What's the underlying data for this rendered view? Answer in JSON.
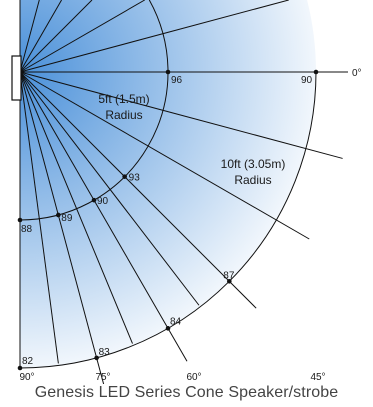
{
  "caption": "Genesis LED Series Cone Speaker/strobe",
  "colors": {
    "gradient_near": "#4a90d9",
    "gradient_far": "#ffffff",
    "lines": "#111111",
    "caption_text": "#444444"
  },
  "radius_labels": {
    "inner": [
      "5ft (1.5m)",
      "Radius"
    ],
    "outer": [
      "10ft (3.05m)",
      "Radius"
    ]
  },
  "angle_labels": [
    {
      "angle": 0,
      "label": "0°"
    },
    {
      "angle": 45,
      "label": "45°"
    },
    {
      "angle": 60,
      "label": "60°"
    },
    {
      "angle": 75,
      "label": "75°"
    },
    {
      "angle": 90,
      "label": "90°"
    }
  ],
  "sound_levels": [
    {
      "arc": "inner",
      "angle": 0,
      "value": "96"
    },
    {
      "arc": "inner",
      "angle": 45,
      "value": "93"
    },
    {
      "arc": "inner",
      "angle": 60,
      "value": "90"
    },
    {
      "arc": "inner",
      "angle": 75,
      "value": "89"
    },
    {
      "arc": "inner",
      "angle": 90,
      "value": "88"
    },
    {
      "arc": "outer",
      "angle": 0,
      "value": "90"
    },
    {
      "arc": "outer",
      "angle": 45,
      "value": "87"
    },
    {
      "arc": "outer",
      "angle": 60,
      "value": "84"
    },
    {
      "arc": "outer",
      "angle": 75,
      "value": "83"
    },
    {
      "arc": "outer",
      "angle": 90,
      "value": "82"
    }
  ]
}
